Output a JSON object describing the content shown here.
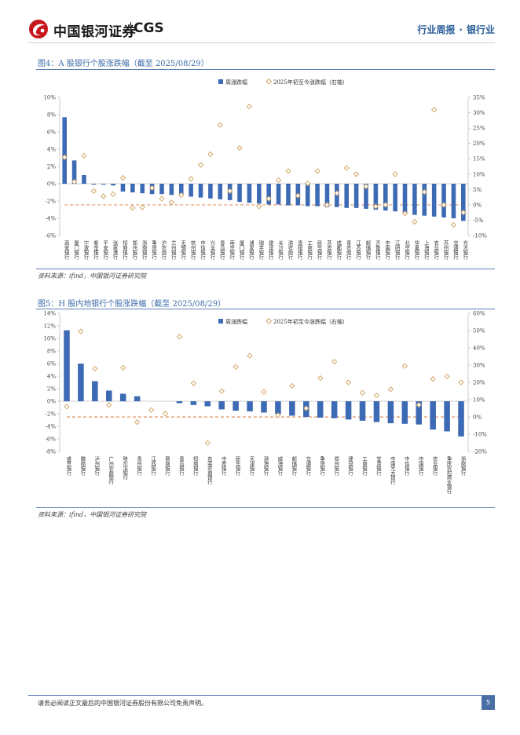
{
  "header": {
    "logo_text": "中国银河证券",
    "logo_brand": "CGS",
    "report_type": "行业周报",
    "separator": "·",
    "industry": "银行业"
  },
  "figure4": {
    "title": "图4：A 股银行个股涨跌幅（截至 2025/08/29）",
    "source": "资料来源：ifind，中国银河证券研究院"
  },
  "figure5": {
    "title": "图5：H 股内地银行个股涨跌幅（截至 2025/08/29）",
    "source": "资料来源：ifind，中国银河证券研究院"
  },
  "footer": {
    "disclaimer": "请务必阅读正文最后的中国银河证券股份有限公司免责声明。",
    "page": "5"
  },
  "colors": {
    "bar": "#3d6ab4",
    "marker": "#d4a86a",
    "dashed": "#d97a3a",
    "accent": "#2a5d98"
  },
  "chart_data": [
    {
      "type": "bar",
      "legend": [
        "周涨跌幅",
        "2025年初至今涨跌幅（右轴）"
      ],
      "categories": [
        "西安银行",
        "厦门银行",
        "宁波银行",
        "紫金银行",
        "平安银行",
        "张家港行",
        "招商银行",
        "郑州银行",
        "浙商银行",
        "重庆银行",
        "沪农商行",
        "兰州银行",
        "无锡银行",
        "杭州银行",
        "中信银行",
        "兴业银行",
        "青岛银行",
        "南京银行",
        "厦门银行",
        "浦发银行",
        "瑞丰银行",
        "建设银行",
        "长沙银行",
        "渝农商行",
        "贵阳银行",
        "工商银行",
        "民生银行",
        "苏农银行",
        "成都银行",
        "青农商行",
        "江苏银行",
        "邮储银行",
        "齐鲁银行",
        "中国银行",
        "江阴银行",
        "北京银行",
        "华夏银行",
        "上海银行",
        "农业银行",
        "苏州银行",
        "交通银行",
        "光大银行"
      ],
      "series": [
        {
          "name": "周涨跌幅",
          "axis": "left",
          "values": [
            7.7,
            2.7,
            1.0,
            -0.1,
            -0.1,
            -0.2,
            -0.9,
            -1.0,
            -1.1,
            -1.2,
            -1.2,
            -1.3,
            -1.4,
            -1.5,
            -1.6,
            -1.7,
            -1.8,
            -1.9,
            -2.1,
            -2.2,
            -2.3,
            -2.4,
            -2.4,
            -2.5,
            -2.5,
            -2.6,
            -2.6,
            -2.7,
            -2.7,
            -2.8,
            -2.8,
            -2.9,
            -3.0,
            -3.1,
            -3.2,
            -3.4,
            -3.6,
            -3.7,
            -3.8,
            -3.9,
            -4.0,
            -4.3
          ]
        },
        {
          "name": "2025年初至今涨跌幅（右轴）",
          "axis": "right",
          "values": [
            15.5,
            7.5,
            16,
            4.5,
            2.8,
            3.5,
            8.8,
            -1.0,
            -0.8,
            5.5,
            2.0,
            0.8,
            3.2,
            8.5,
            13,
            16.5,
            26,
            4.5,
            18.5,
            32,
            -0.5,
            2.0,
            8.0,
            11,
            3.0,
            7.0,
            11,
            0.0,
            3.8,
            12,
            10,
            6,
            -0.5,
            0.0,
            10,
            -2.8,
            -5.5,
            4.2,
            31,
            0.0,
            -6.5,
            -2.5
          ]
        }
      ],
      "ylim_left": [
        -6,
        10
      ],
      "yticks_left": [
        "-6%",
        "-4%",
        "-2%",
        "0%",
        "2%",
        "4%",
        "6%",
        "8%",
        "10%"
      ],
      "ylim_right": [
        -10,
        35
      ],
      "yticks_right": [
        "-10%",
        "-5%",
        "0%",
        "5%",
        "10%",
        "15%",
        "20%",
        "25%",
        "30%",
        "35%"
      ]
    },
    {
      "type": "bar",
      "legend": [
        "周涨跌幅",
        "2025年初至今涨跌幅（右轴）"
      ],
      "categories": [
        "盛京银行",
        "徽商银行",
        "泸州银行",
        "广州农商银行",
        "哈尔滨银行",
        "贵州银行",
        "江西银行",
        "晋商银行",
        "青岛银行",
        "招商银行",
        "东莞农商银行",
        "中原银行",
        "民生银行",
        "天津银行",
        "渤海银行",
        "威海银行",
        "邮储银行",
        "交通银行",
        "重庆银行",
        "郑州银行",
        "建设银行",
        "工商银行",
        "甘肃银行",
        "中国光大银行",
        "中信银行",
        "中国银行",
        "农业银行",
        "重庆农村商业银行",
        "浙商银行"
      ],
      "series": [
        {
          "name": "周涨跌幅",
          "axis": "left",
          "values": [
            11.3,
            6.0,
            3.2,
            1.7,
            1.2,
            0.8,
            0.0,
            0.0,
            -0.3,
            -0.6,
            -0.8,
            -1.3,
            -1.5,
            -1.6,
            -1.8,
            -2.0,
            -2.3,
            -2.5,
            -2.6,
            -2.7,
            -2.9,
            -3.1,
            -3.3,
            -3.5,
            -3.6,
            -3.7,
            -4.5,
            -4.8,
            -5.6
          ]
        },
        {
          "name": "2025年初至今涨跌幅（右轴）",
          "axis": "right",
          "values": [
            6.0,
            49.5,
            28,
            7.0,
            28.5,
            -3.0,
            4.0,
            2.0,
            46.5,
            19.5,
            -15,
            15,
            29,
            35.5,
            14.5,
            1.0,
            18,
            5.0,
            22.5,
            32,
            20,
            14,
            12.5,
            16,
            29.5,
            7.0,
            22,
            23.5,
            20
          ]
        }
      ],
      "ylim_left": [
        -8,
        14
      ],
      "yticks_left": [
        "-8%",
        "-6%",
        "-4%",
        "-2%",
        "0%",
        "2%",
        "4%",
        "6%",
        "8%",
        "10%",
        "12%",
        "14%"
      ],
      "ylim_right": [
        -20,
        60
      ],
      "yticks_right": [
        "-20%",
        "-10%",
        "0%",
        "10%",
        "20%",
        "30%",
        "40%",
        "50%",
        "60%"
      ]
    }
  ]
}
